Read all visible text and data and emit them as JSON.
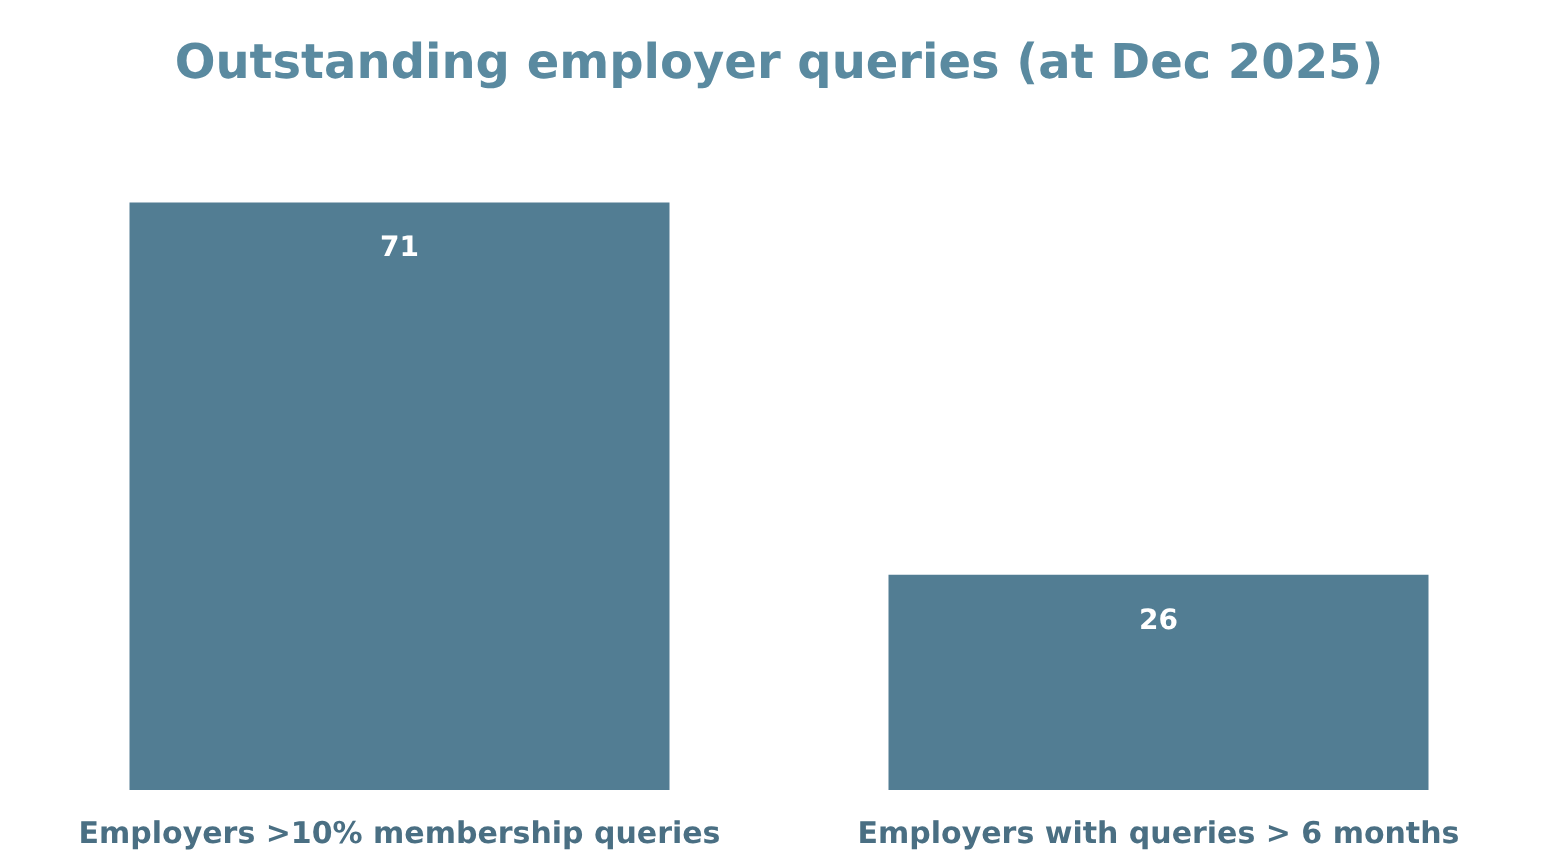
{
  "chart_data": {
    "type": "bar",
    "title": "Outstanding employer queries (at Dec 2025)",
    "categories": [
      "Employers >10% membership queries",
      "Employers with queries > 6 months"
    ],
    "values": [
      71,
      26
    ],
    "color": "#527d93",
    "data_labels": true
  }
}
